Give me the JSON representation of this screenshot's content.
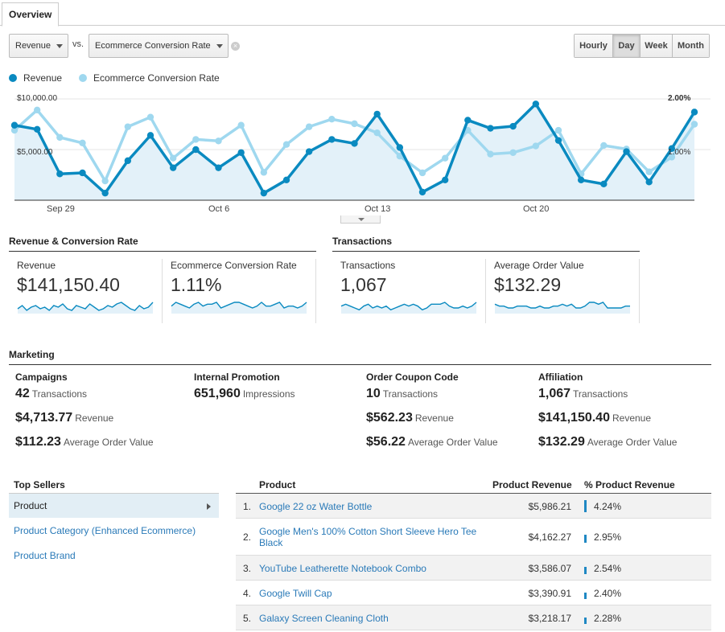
{
  "tab": {
    "label": "Overview"
  },
  "controls": {
    "metric1": "Revenue",
    "vs_label": "vs.",
    "metric2": "Ecommerce Conversion Rate",
    "granularity": [
      {
        "label": "Hourly",
        "active": false
      },
      {
        "label": "Day",
        "active": true
      },
      {
        "label": "Week",
        "active": false
      },
      {
        "label": "Month",
        "active": false
      }
    ]
  },
  "chart_data": {
    "type": "line",
    "legend": [
      "Revenue",
      "Ecommerce Conversion Rate"
    ],
    "x_ticks": [
      "Sep 29",
      "Oct 6",
      "Oct 13",
      "Oct 20"
    ],
    "y_left_ticks": [
      "$10,000.00",
      "$5,000.00"
    ],
    "y_right_ticks": [
      "2.00%",
      "1.00%"
    ],
    "y_left_range": [
      0,
      10000
    ],
    "y_right_range": [
      0,
      2
    ],
    "series": [
      {
        "name": "Revenue",
        "color": "#0a8ac0",
        "axis": "left",
        "values": [
          7400,
          7000,
          2600,
          2700,
          700,
          3900,
          6400,
          3200,
          5000,
          3200,
          4700,
          700,
          2000,
          4800,
          6000,
          5600,
          8500,
          5200,
          800,
          2000,
          7900,
          7100,
          7300,
          9500,
          5900,
          2000,
          1600,
          4800,
          1800,
          5100,
          8700
        ]
      },
      {
        "name": "Ecommerce Conversion Rate",
        "color": "#9fd8ef",
        "axis": "right",
        "values": [
          1.38,
          1.78,
          1.24,
          1.13,
          0.38,
          1.45,
          1.64,
          0.83,
          1.2,
          1.17,
          1.48,
          0.55,
          1.1,
          1.45,
          1.6,
          1.51,
          1.33,
          0.87,
          0.54,
          0.83,
          1.38,
          0.91,
          0.94,
          1.07,
          1.38,
          0.52,
          1.08,
          1.01,
          0.56,
          0.85,
          1.5
        ]
      }
    ]
  },
  "rev_conv": {
    "title": "Revenue & Conversion Rate",
    "metrics": [
      {
        "label": "Revenue",
        "value": "$141,150.40",
        "trend": [
          3,
          5,
          2,
          4,
          5,
          3,
          4,
          2,
          5,
          4,
          6,
          3,
          2,
          5,
          4,
          3,
          6,
          4,
          2,
          3,
          5,
          4,
          6,
          7,
          5,
          3,
          2,
          5,
          3,
          4,
          7
        ]
      },
      {
        "label": "Ecommerce Conversion Rate",
        "value": "1.11%",
        "trend": [
          4,
          6,
          5,
          4,
          3,
          5,
          6,
          4,
          5,
          5,
          6,
          3,
          4,
          5,
          6,
          6,
          5,
          4,
          3,
          4,
          6,
          4,
          4,
          5,
          6,
          3,
          4,
          4,
          3,
          4,
          6
        ]
      }
    ]
  },
  "transactions": {
    "title": "Transactions",
    "metrics": [
      {
        "label": "Transactions",
        "value": "1,067",
        "trend": [
          4,
          5,
          4,
          3,
          2,
          4,
          5,
          3,
          4,
          3,
          4,
          2,
          3,
          4,
          5,
          4,
          5,
          4,
          2,
          3,
          5,
          5,
          5,
          6,
          4,
          3,
          3,
          4,
          3,
          4,
          6
        ]
      },
      {
        "label": "Average Order Value",
        "value": "$132.29",
        "trend": [
          5,
          4,
          4,
          3,
          3,
          4,
          4,
          4,
          3,
          3,
          4,
          3,
          3,
          4,
          4,
          5,
          4,
          5,
          3,
          3,
          4,
          6,
          6,
          5,
          6,
          3,
          3,
          3,
          3,
          4,
          4
        ]
      }
    ]
  },
  "marketing": {
    "title": "Marketing",
    "columns": [
      {
        "title": "Campaigns",
        "rows": [
          {
            "value": "42",
            "unit": "Transactions"
          },
          {
            "value": "$4,713.77",
            "unit": "Revenue"
          },
          {
            "value": "$112.23",
            "unit": "Average Order Value"
          }
        ]
      },
      {
        "title": "Internal Promotion",
        "rows": [
          {
            "value": "651,960",
            "unit": "Impressions"
          }
        ]
      },
      {
        "title": "Order Coupon Code",
        "rows": [
          {
            "value": "10",
            "unit": "Transactions"
          },
          {
            "value": "$562.23",
            "unit": "Revenue"
          },
          {
            "value": "$56.22",
            "unit": "Average Order Value"
          }
        ]
      },
      {
        "title": "Affiliation",
        "rows": [
          {
            "value": "1,067",
            "unit": "Transactions"
          },
          {
            "value": "$141,150.40",
            "unit": "Revenue"
          },
          {
            "value": "$132.29",
            "unit": "Average Order Value"
          }
        ]
      }
    ]
  },
  "top_sellers": {
    "title": "Top Sellers",
    "items": [
      {
        "label": "Product",
        "active": true
      },
      {
        "label": "Product Category (Enhanced Ecommerce)",
        "active": false
      },
      {
        "label": "Product Brand",
        "active": false
      }
    ]
  },
  "product_table": {
    "headers": {
      "product": "Product",
      "revenue": "Product Revenue",
      "pct": "% Product Revenue"
    },
    "rows": [
      {
        "idx": "1.",
        "name": "Google 22 oz Water Bottle",
        "revenue": "$5,986.21",
        "pct": "4.24%",
        "share": 4.24
      },
      {
        "idx": "2.",
        "name": "Google Men's 100% Cotton Short Sleeve Hero Tee Black",
        "revenue": "$4,162.27",
        "pct": "2.95%",
        "share": 2.95
      },
      {
        "idx": "3.",
        "name": "YouTube Leatherette Notebook Combo",
        "revenue": "$3,586.07",
        "pct": "2.54%",
        "share": 2.54
      },
      {
        "idx": "4.",
        "name": "Google Twill Cap",
        "revenue": "$3,390.91",
        "pct": "2.40%",
        "share": 2.4
      },
      {
        "idx": "5.",
        "name": "Galaxy Screen Cleaning Cloth",
        "revenue": "$3,218.17",
        "pct": "2.28%",
        "share": 2.28
      }
    ]
  },
  "colors": {
    "revenue": "#0a8ac0",
    "conversion": "#9fd8ef",
    "link": "#2a7ab8",
    "area": "#e3f1f9"
  }
}
